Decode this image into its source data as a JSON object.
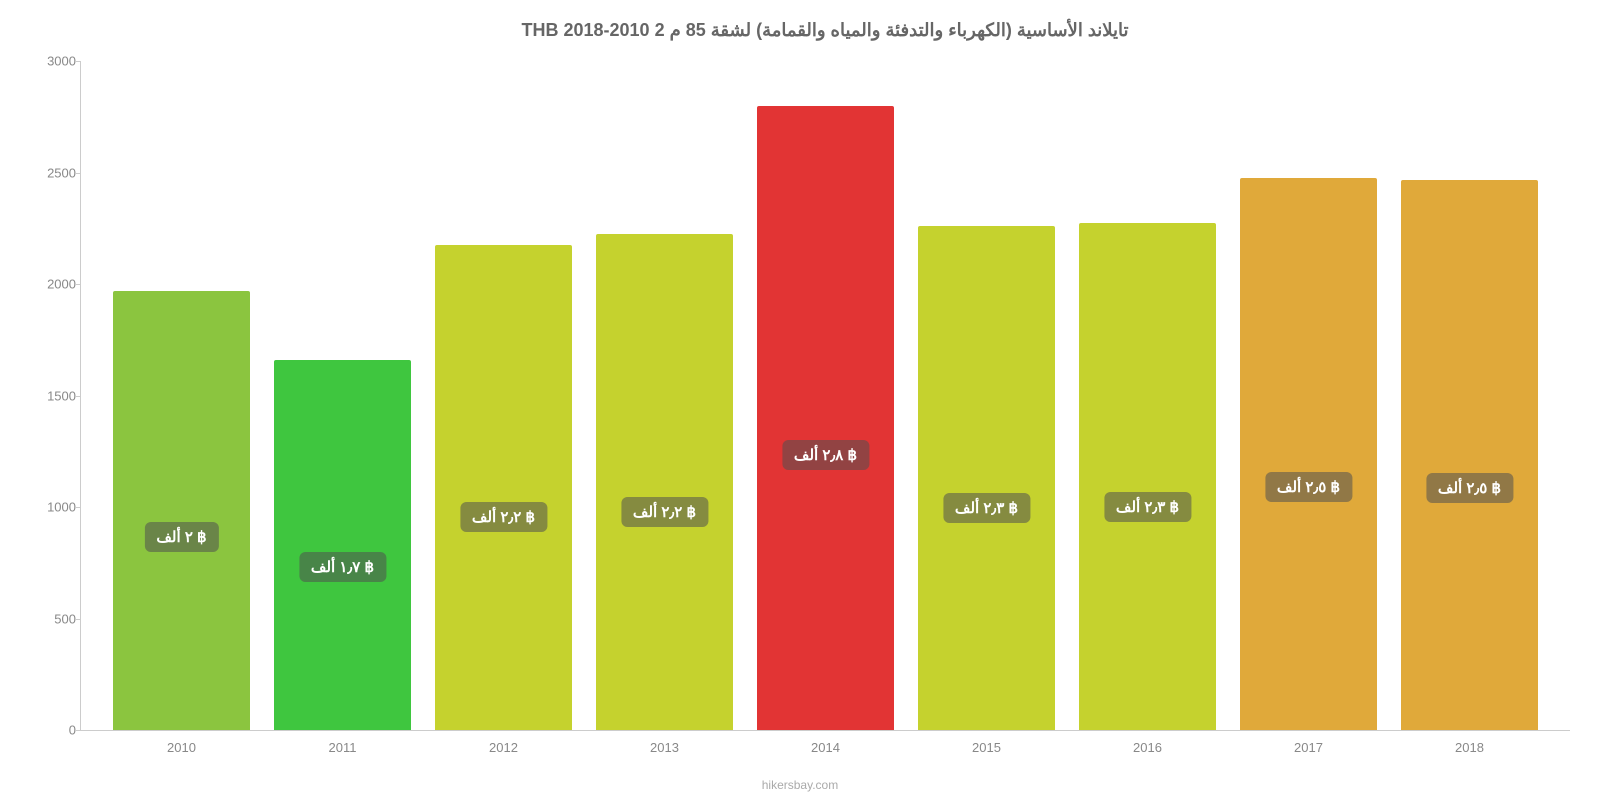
{
  "chart": {
    "type": "bar",
    "title": "تايلاند الأساسية (الكهرباء والتدفئة والمياه والقمامة) لشقة 85 م 2 2010-2018 THB",
    "title_fontsize": 18,
    "title_color": "#666666",
    "background_color": "#ffffff",
    "axis_color": "#cccccc",
    "tick_label_color": "#888888",
    "tick_label_fontsize": 13,
    "ylim": [
      0,
      3000
    ],
    "ytick_step": 500,
    "yticks": [
      {
        "value": 0,
        "label": "0"
      },
      {
        "value": 500,
        "label": "500"
      },
      {
        "value": 1000,
        "label": "1000"
      },
      {
        "value": 1500,
        "label": "1500"
      },
      {
        "value": 2000,
        "label": "2000"
      },
      {
        "value": 2500,
        "label": "2500"
      },
      {
        "value": 3000,
        "label": "3000"
      }
    ],
    "categories": [
      "2010",
      "2011",
      "2012",
      "2013",
      "2014",
      "2015",
      "2016",
      "2017",
      "2018"
    ],
    "values": [
      1970,
      1660,
      2175,
      2225,
      2800,
      2260,
      2275,
      2475,
      2465
    ],
    "bar_colors": [
      "#8bc53f",
      "#3fc63f",
      "#c5d22e",
      "#c5d22e",
      "#e23434",
      "#c5d22e",
      "#c5d22e",
      "#e0a93a",
      "#e0a93a"
    ],
    "value_labels": [
      "฿ ٢ ألف",
      "฿ ١٫٧ ألف",
      "฿ ٢٫٢ ألف",
      "฿ ٢٫٢ ألف",
      "฿ ٢٫٨ ألف",
      "฿ ٢٫٣ ألف",
      "฿ ٢٫٣ ألف",
      "฿ ٢٫٥ ألف",
      "฿ ٢٫٥ ألف"
    ],
    "value_label_fontsize": 15,
    "value_label_bg": "rgba(80,80,80,0.55)",
    "value_label_color": "#ffffff",
    "bar_width": 0.86,
    "footer": "hikersbay.com",
    "footer_color": "#aaaaaa",
    "footer_fontsize": 12
  }
}
